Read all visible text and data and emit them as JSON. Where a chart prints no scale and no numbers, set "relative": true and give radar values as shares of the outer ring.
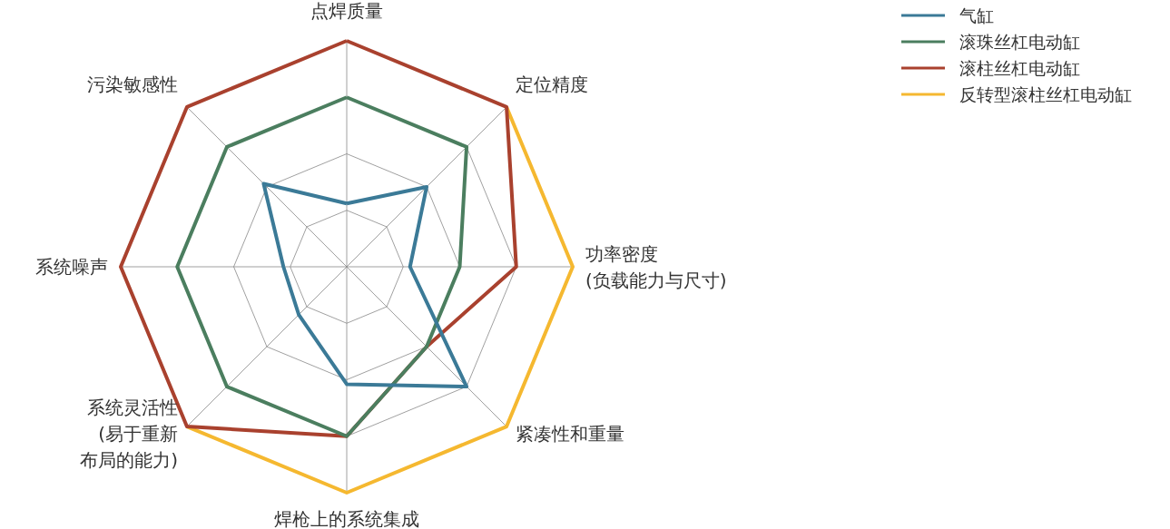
{
  "chart_data": {
    "type": "radar",
    "relative": true,
    "grid": true,
    "legend": "top right",
    "categories": [
      "点焊质量",
      "定位精度",
      "功率密度(负载能力与尺寸)",
      "紧凑性和重量",
      "焊枪上的系统集成",
      "系统灵活性(易于重新布局的能力)",
      "系统噪声",
      "污染敏感性"
    ],
    "series": [
      {
        "name": "气缸",
        "color": "#3b7a97",
        "values": [
          0.28,
          0.5,
          0.28,
          0.75,
          0.52,
          0.3,
          0.28,
          0.52
        ]
      },
      {
        "name": "滚珠丝杠电动缸",
        "color": "#4b7e5f",
        "values": [
          0.75,
          0.75,
          0.5,
          0.5,
          0.75,
          0.75,
          0.75,
          0.75
        ]
      },
      {
        "name": "滚柱丝杠电动缸",
        "color": "#a9412e",
        "values": [
          1,
          1,
          0.75,
          0.5,
          0.75,
          1,
          1,
          1
        ]
      },
      {
        "name": "反转型滚柱丝杠电动缸",
        "color": "#f5b830",
        "values": [
          null,
          1,
          1,
          1,
          1,
          1,
          null,
          null
        ]
      }
    ]
  }
}
